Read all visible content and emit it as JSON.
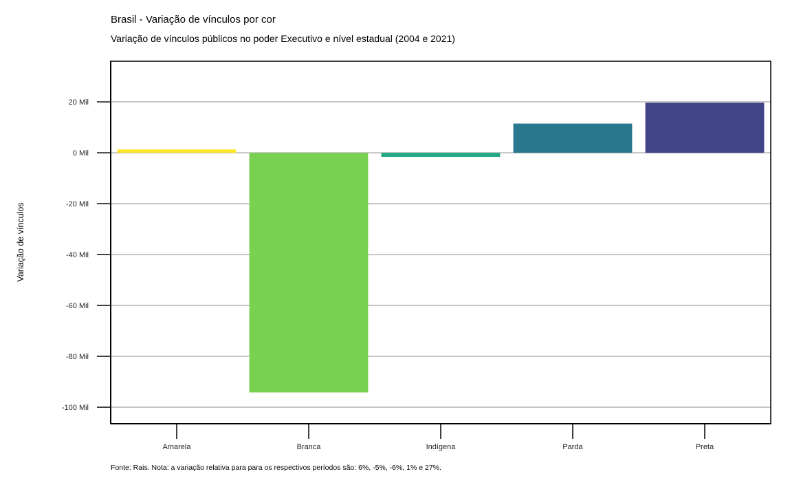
{
  "title": "Brasil - Variação de vínculos por cor",
  "subtitle": "Variação de vínculos públicos no poder Executivo e nível estadual (2004 e 2021)",
  "footer": "Fonte: Rais. Nota: a variação relativa para para os respectivos períodos são: 6%, -5%, -6%, 1% e 27%.",
  "chart_data": {
    "type": "bar",
    "title": "Variação de vínculos públicos no poder Executivo e nível estadual (2004 e 2021)",
    "xlabel": "",
    "ylabel": "Variação de vínculos",
    "categories": [
      "Amarela",
      "Branca",
      "Indígena",
      "Parda",
      "Preta"
    ],
    "values": [
      1300,
      -94200,
      -1600,
      11500,
      19700
    ],
    "colors": [
      "#FDE725",
      "#7AD151",
      "#22A884",
      "#2A788E",
      "#414487"
    ],
    "ylim": [
      -106500,
      36000
    ],
    "yticks": [
      20000,
      0,
      -20000,
      -40000,
      -60000,
      -80000,
      -100000
    ],
    "ytick_labels": [
      "20 Mil",
      "0 Mil",
      "-20 Mil",
      "-40 Mil",
      "-60 Mil",
      "-80 Mil",
      "-100 Mil"
    ],
    "grid": true,
    "legend": "none"
  }
}
